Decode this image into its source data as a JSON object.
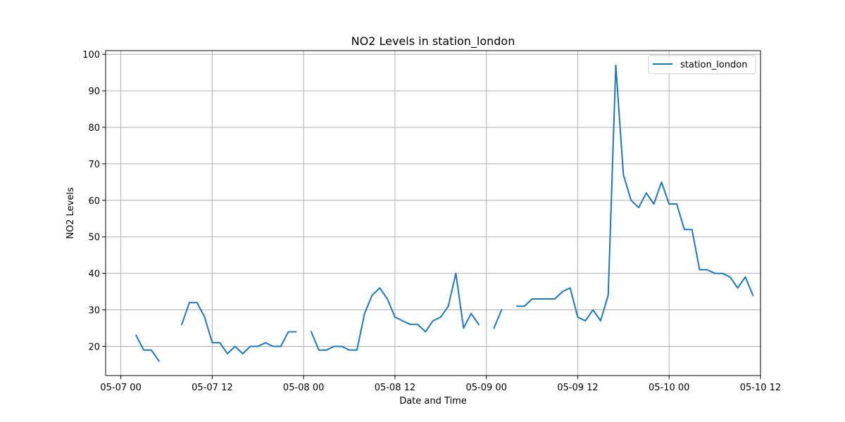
{
  "chart_data": {
    "type": "line",
    "title": "NO2 Levels in station_london",
    "xlabel": "Date and Time",
    "ylabel": "NO2 Levels",
    "grid": true,
    "legend_position": "top-right",
    "x_range": [
      "2025-05-06 22:00",
      "2025-05-10 12:00"
    ],
    "ylim": [
      12,
      101
    ],
    "x_ticks": [
      {
        "value": "2025-05-07 00:00",
        "label": "05-07 00"
      },
      {
        "value": "2025-05-07 12:00",
        "label": "05-07 12"
      },
      {
        "value": "2025-05-08 00:00",
        "label": "05-08 00"
      },
      {
        "value": "2025-05-08 12:00",
        "label": "05-08 12"
      },
      {
        "value": "2025-05-09 00:00",
        "label": "05-09 00"
      },
      {
        "value": "2025-05-09 12:00",
        "label": "05-09 12"
      },
      {
        "value": "2025-05-10 00:00",
        "label": "05-10 00"
      },
      {
        "value": "2025-05-10 12:00",
        "label": "05-10 12"
      }
    ],
    "y_ticks": [
      20,
      30,
      40,
      50,
      60,
      70,
      80,
      90,
      100
    ],
    "series": [
      {
        "name": "station_london",
        "color": "#1f77b4",
        "points": [
          [
            "2025-05-07 02:00",
            23
          ],
          [
            "2025-05-07 03:00",
            19
          ],
          [
            "2025-05-07 04:00",
            19
          ],
          [
            "2025-05-07 05:00",
            16
          ],
          [
            "2025-05-07 06:00",
            null
          ],
          [
            "2025-05-07 07:00",
            null
          ],
          [
            "2025-05-07 08:00",
            26
          ],
          [
            "2025-05-07 09:00",
            32
          ],
          [
            "2025-05-07 10:00",
            32
          ],
          [
            "2025-05-07 11:00",
            28
          ],
          [
            "2025-05-07 12:00",
            21
          ],
          [
            "2025-05-07 13:00",
            21
          ],
          [
            "2025-05-07 14:00",
            18
          ],
          [
            "2025-05-07 15:00",
            20
          ],
          [
            "2025-05-07 16:00",
            18
          ],
          [
            "2025-05-07 17:00",
            20
          ],
          [
            "2025-05-07 18:00",
            20
          ],
          [
            "2025-05-07 19:00",
            21
          ],
          [
            "2025-05-07 20:00",
            20
          ],
          [
            "2025-05-07 21:00",
            20
          ],
          [
            "2025-05-07 22:00",
            24
          ],
          [
            "2025-05-07 23:00",
            24
          ],
          [
            "2025-05-08 00:00",
            null
          ],
          [
            "2025-05-08 01:00",
            24
          ],
          [
            "2025-05-08 02:00",
            19
          ],
          [
            "2025-05-08 03:00",
            19
          ],
          [
            "2025-05-08 04:00",
            20
          ],
          [
            "2025-05-08 05:00",
            20
          ],
          [
            "2025-05-08 06:00",
            19
          ],
          [
            "2025-05-08 07:00",
            19
          ],
          [
            "2025-05-08 08:00",
            29
          ],
          [
            "2025-05-08 09:00",
            34
          ],
          [
            "2025-05-08 10:00",
            36
          ],
          [
            "2025-05-08 11:00",
            33
          ],
          [
            "2025-05-08 12:00",
            28
          ],
          [
            "2025-05-08 13:00",
            27
          ],
          [
            "2025-05-08 14:00",
            26
          ],
          [
            "2025-05-08 15:00",
            26
          ],
          [
            "2025-05-08 16:00",
            24
          ],
          [
            "2025-05-08 17:00",
            27
          ],
          [
            "2025-05-08 18:00",
            28
          ],
          [
            "2025-05-08 19:00",
            31
          ],
          [
            "2025-05-08 20:00",
            40
          ],
          [
            "2025-05-08 21:00",
            25
          ],
          [
            "2025-05-08 22:00",
            29
          ],
          [
            "2025-05-08 23:00",
            26
          ],
          [
            "2025-05-09 00:00",
            null
          ],
          [
            "2025-05-09 01:00",
            25
          ],
          [
            "2025-05-09 02:00",
            30
          ],
          [
            "2025-05-09 03:00",
            null
          ],
          [
            "2025-05-09 04:00",
            31
          ],
          [
            "2025-05-09 05:00",
            31
          ],
          [
            "2025-05-09 06:00",
            33
          ],
          [
            "2025-05-09 07:00",
            33
          ],
          [
            "2025-05-09 08:00",
            33
          ],
          [
            "2025-05-09 09:00",
            33
          ],
          [
            "2025-05-09 10:00",
            35
          ],
          [
            "2025-05-09 11:00",
            36
          ],
          [
            "2025-05-09 12:00",
            28
          ],
          [
            "2025-05-09 13:00",
            27
          ],
          [
            "2025-05-09 14:00",
            30
          ],
          [
            "2025-05-09 15:00",
            27
          ],
          [
            "2025-05-09 16:00",
            34
          ],
          [
            "2025-05-09 17:00",
            97
          ],
          [
            "2025-05-09 18:00",
            67
          ],
          [
            "2025-05-09 19:00",
            60
          ],
          [
            "2025-05-09 20:00",
            58
          ],
          [
            "2025-05-09 21:00",
            62
          ],
          [
            "2025-05-09 22:00",
            59
          ],
          [
            "2025-05-09 23:00",
            65
          ],
          [
            "2025-05-10 00:00",
            59
          ],
          [
            "2025-05-10 01:00",
            59
          ],
          [
            "2025-05-10 02:00",
            52
          ],
          [
            "2025-05-10 03:00",
            52
          ],
          [
            "2025-05-10 04:00",
            41
          ],
          [
            "2025-05-10 05:00",
            41
          ],
          [
            "2025-05-10 06:00",
            40
          ],
          [
            "2025-05-10 07:00",
            40
          ],
          [
            "2025-05-10 08:00",
            39
          ],
          [
            "2025-05-10 09:00",
            36
          ],
          [
            "2025-05-10 10:00",
            39
          ],
          [
            "2025-05-10 11:00",
            34
          ]
        ]
      }
    ]
  }
}
